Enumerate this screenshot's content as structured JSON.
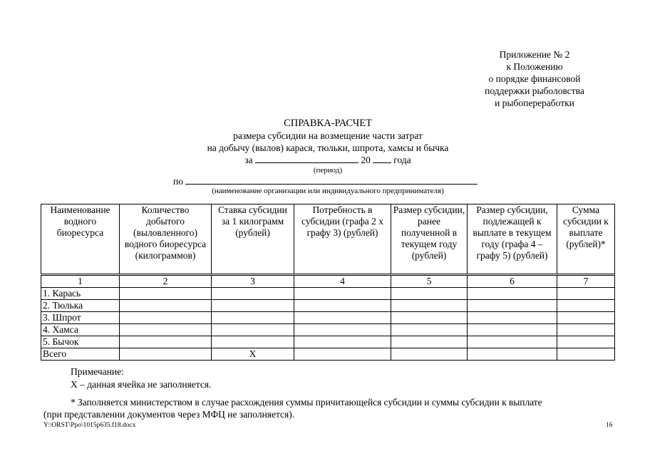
{
  "appendix": {
    "lines": [
      "Приложение № 2",
      "к Положению",
      "о порядке финансовой",
      "поддержки рыболовства",
      "и рыбопереработки"
    ]
  },
  "title": "СПРАВКА-РАСЧЕТ",
  "subtitle_lines": [
    "размера субсидии на возмещение части затрат",
    "на добычу (вылов) карася, тюльки, шпрота, хамсы и бычка"
  ],
  "period": {
    "prefix": "за",
    "year_prefix": "20",
    "suffix": "года",
    "caption": "(период)"
  },
  "org": {
    "prefix": "по",
    "caption": "(наименование организации или индивидуального предпринимателя)"
  },
  "table": {
    "headers": [
      "Наименование водного биоресурса",
      "Количество добытого (выловленного) водного биоресурса (килограммов)",
      "Ставка субсидии за 1 килограмм (рублей)",
      "Потребность в субсидии (графа 2 х графу 3) (рублей)",
      "Размер субсидии, ранее полученной в текущем году (рублей)",
      "Размер субсидии, подлежащей к выплате в текущем году (графа 4 – графу 5) (рублей)",
      "Сумма субсидии к выплате (рублей)*"
    ],
    "column_numbers": [
      "1",
      "2",
      "3",
      "4",
      "5",
      "6",
      "7"
    ],
    "rows": [
      [
        "1. Карась",
        "",
        "",
        "",
        "",
        "",
        ""
      ],
      [
        "2. Тюлька",
        "",
        "",
        "",
        "",
        "",
        ""
      ],
      [
        "3. Шпрот",
        "",
        "",
        "",
        "",
        "",
        ""
      ],
      [
        "4. Хамса",
        "",
        "",
        "",
        "",
        "",
        ""
      ],
      [
        "5. Бычок",
        "",
        "",
        "",
        "",
        "",
        ""
      ],
      [
        "Всего",
        "",
        "Х",
        "",
        "",
        "",
        ""
      ]
    ]
  },
  "notes": {
    "heading": "Примечание:",
    "x_note": "Х – данная ячейка не заполняется.",
    "asterisk_line1": "* Заполняется министерством в случае расхождения суммы причитающейся субсидии и суммы субсидии к выплате",
    "asterisk_line2": "(при представлении документов через МФЦ не заполняется)."
  },
  "footer": {
    "path": "Y:\\ORST\\Ppo\\1015p635.f18.docx",
    "page": "16"
  }
}
